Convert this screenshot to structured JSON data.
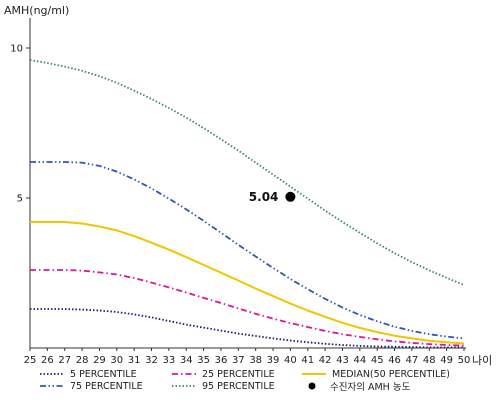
{
  "chart_data": {
    "type": "line",
    "ylabel": "AMH(ng/ml)",
    "xlabel": "나이",
    "xlim": [
      25,
      50
    ],
    "ylim": [
      0,
      11
    ],
    "x_ticks": [
      25,
      26,
      27,
      28,
      29,
      30,
      31,
      32,
      33,
      34,
      35,
      36,
      37,
      38,
      39,
      40,
      41,
      42,
      43,
      44,
      45,
      46,
      47,
      48,
      49,
      50
    ],
    "y_ticks": [
      5,
      10
    ],
    "grid": false,
    "legend_position": "bottom",
    "x": [
      25,
      26,
      27,
      28,
      29,
      30,
      31,
      32,
      33,
      34,
      35,
      36,
      37,
      38,
      39,
      40,
      41,
      42,
      43,
      44,
      45,
      46,
      47,
      48,
      49,
      50
    ],
    "series": [
      {
        "name": "5 PERCENTILE",
        "color": "#1a1a7a",
        "style": "dotted",
        "values": [
          1.3,
          1.3,
          1.3,
          1.28,
          1.25,
          1.2,
          1.12,
          1.02,
          0.9,
          0.78,
          0.68,
          0.58,
          0.48,
          0.4,
          0.32,
          0.25,
          0.19,
          0.14,
          0.1,
          0.07,
          0.05,
          0.04,
          0.03,
          0.02,
          0.02,
          0.02
        ]
      },
      {
        "name": "25 PERCENTILE",
        "color": "#e0149a",
        "style": "dashdot",
        "values": [
          2.6,
          2.6,
          2.6,
          2.58,
          2.52,
          2.45,
          2.33,
          2.18,
          2.02,
          1.85,
          1.67,
          1.5,
          1.32,
          1.14,
          0.98,
          0.83,
          0.7,
          0.57,
          0.46,
          0.37,
          0.29,
          0.22,
          0.17,
          0.13,
          0.1,
          0.08
        ]
      },
      {
        "name": "MEDIAN(50 PERCENTILE)",
        "color": "#f2c500",
        "style": "solid",
        "values": [
          4.2,
          4.2,
          4.2,
          4.15,
          4.05,
          3.92,
          3.73,
          3.51,
          3.28,
          3.03,
          2.77,
          2.51,
          2.25,
          1.98,
          1.73,
          1.48,
          1.25,
          1.04,
          0.84,
          0.67,
          0.53,
          0.41,
          0.32,
          0.24,
          0.19,
          0.15
        ]
      },
      {
        "name": "75 PERCENTILE",
        "color": "#2f56c0",
        "style": "dashdotdot",
        "values": [
          6.2,
          6.2,
          6.2,
          6.18,
          6.07,
          5.88,
          5.62,
          5.32,
          4.98,
          4.62,
          4.24,
          3.84,
          3.44,
          3.05,
          2.67,
          2.3,
          1.96,
          1.64,
          1.35,
          1.1,
          0.89,
          0.71,
          0.57,
          0.46,
          0.38,
          0.32
        ]
      },
      {
        "name": "95 PERCENTILE",
        "color": "#3a8a5a",
        "style": "dotted",
        "values": [
          9.6,
          9.5,
          9.38,
          9.24,
          9.06,
          8.84,
          8.58,
          8.3,
          8.0,
          7.68,
          7.33,
          6.96,
          6.58,
          6.18,
          5.78,
          5.38,
          4.98,
          4.58,
          4.2,
          3.84,
          3.49,
          3.16,
          2.86,
          2.59,
          2.34,
          2.1
        ]
      }
    ],
    "patient": {
      "name": "수진자의 AMH 농도",
      "x": 40,
      "y": 5.04,
      "label": "5.04",
      "color": "#000000"
    }
  }
}
